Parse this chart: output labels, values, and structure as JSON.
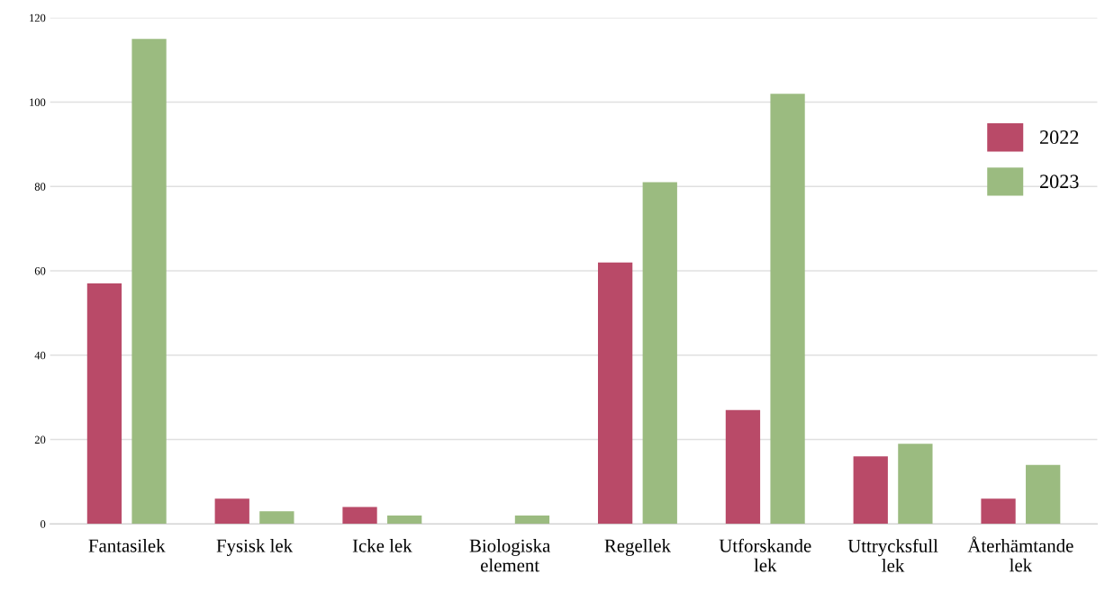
{
  "chart_data": {
    "type": "bar",
    "categories": [
      "Fantasilek",
      "Fysisk lek",
      "Icke lek",
      "Biologiska\nelement",
      "Regellek",
      "Utforskande\nlek",
      "Uttrycksfull\nlek",
      "Återhämtande\nlek"
    ],
    "series": [
      {
        "name": "2022",
        "color": "#b94a68",
        "values": [
          57,
          6,
          4,
          0,
          62,
          27,
          16,
          6
        ]
      },
      {
        "name": "2023",
        "color": "#9bbb80",
        "values": [
          115,
          3,
          2,
          2,
          81,
          102,
          19,
          14
        ]
      }
    ],
    "ylim": [
      0,
      120
    ],
    "yticks": [
      0,
      20,
      40,
      60,
      80,
      100,
      120
    ],
    "grid": "y",
    "legend": "right"
  }
}
